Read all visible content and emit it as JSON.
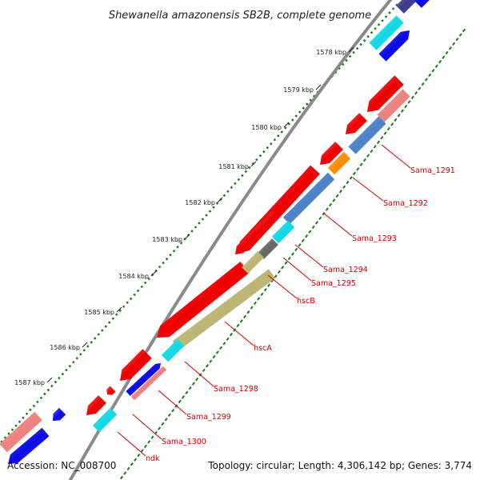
{
  "title": "Shewanella amazonensis SB2B, complete genome",
  "footer": {
    "accession": "Accession: NC_008700",
    "summary": "Topology: circular; Length: 4,306,142 bp; Genes: 3,774"
  },
  "ticks": [
    "1578 kbp",
    "1579 kbp",
    "1580 kbp",
    "1581 kbp",
    "1582 kbp",
    "1583 kbp",
    "1584 kbp",
    "1585 kbp",
    "1586 kbp",
    "1587 kbp"
  ],
  "gene_labels": [
    "Sama_1291",
    "Sama_1292",
    "Sama_1293",
    "Sama_1294",
    "Sama_1295",
    "hscB",
    "hscA",
    "Sama_1298",
    "Sama_1299",
    "Sama_1300",
    "ndk"
  ],
  "colors": {
    "backbone": "#888888",
    "tick_mark": "#1a7a1a",
    "label_text": "#cc0000",
    "leader": "#cc0000",
    "red": "#ee0000",
    "pink": "#ee8080",
    "blue": "#0a0ae6",
    "cyan": "#10d8e6",
    "steelblue": "#4b82c8",
    "olive": "#bdb573",
    "orange": "#ff8c00",
    "gray": "#666666",
    "navy": "#3b3b8c"
  }
}
